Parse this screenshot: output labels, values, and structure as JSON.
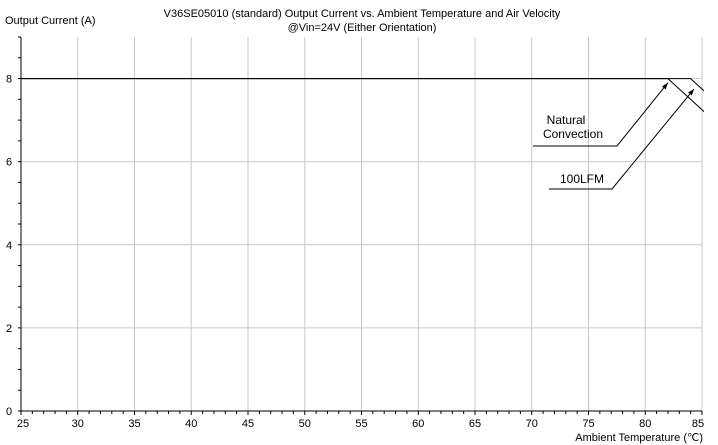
{
  "chart_data": {
    "type": "line",
    "title_line1": "V36SE05010 (standard)  Output Current vs. Ambient Temperature and Air Velocity",
    "title_line2": "@Vin=24V (Either Orientation)",
    "ylabel": "Output Current (A)",
    "xlabel": "Ambient Temperature (℃)",
    "xlim": [
      25,
      85
    ],
    "ylim": [
      0,
      9
    ],
    "x_ticks": [
      25,
      30,
      35,
      40,
      45,
      50,
      55,
      60,
      65,
      70,
      75,
      80,
      85
    ],
    "y_ticks": [
      0,
      2,
      4,
      6,
      8
    ],
    "grid": true,
    "series": [
      {
        "name": "Natural Convection",
        "x": [
          25,
          82,
          86
        ],
        "y": [
          8,
          8,
          7.0
        ]
      },
      {
        "name": "100LFM",
        "x": [
          25,
          84,
          86
        ],
        "y": [
          8,
          8,
          7.5
        ]
      }
    ],
    "annotations": [
      {
        "lines": [
          "Natural",
          "Convection"
        ],
        "target_series": "Natural Convection",
        "target": [
          82,
          7.9
        ]
      },
      {
        "lines": [
          "100LFM"
        ],
        "target_series": "100LFM",
        "target": [
          84.3,
          7.75
        ]
      }
    ]
  }
}
